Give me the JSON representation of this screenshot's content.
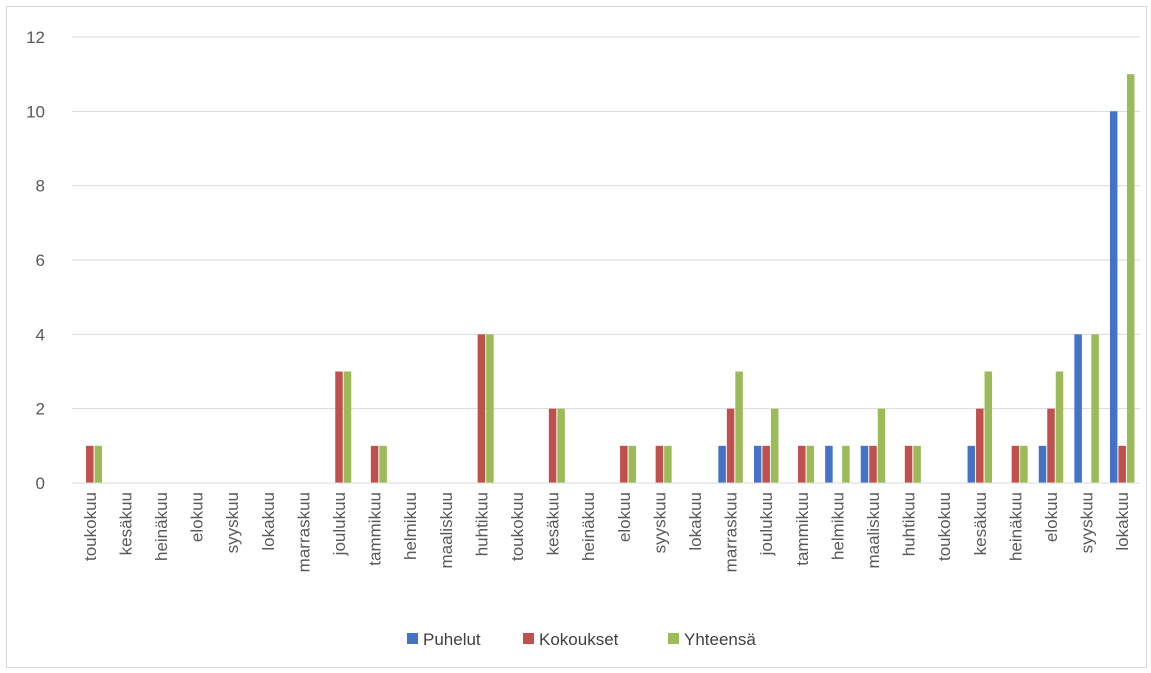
{
  "chart_data": {
    "type": "bar",
    "title": "",
    "xlabel": "",
    "ylabel": "",
    "ylim": [
      0,
      12
    ],
    "yticks": [
      0,
      2,
      4,
      6,
      8,
      10,
      12
    ],
    "grid": true,
    "legend_position": "bottom",
    "categories": [
      "toukokuu",
      "kesäkuu",
      "heinäkuu",
      "elokuu",
      "syyskuu",
      "lokakuu",
      "marraskuu",
      "joulukuu",
      "tammikuu",
      "helmikuu",
      "maaliskuu",
      "huhtikuu",
      "toukokuu",
      "kesäkuu",
      "heinäkuu",
      "elokuu",
      "syyskuu",
      "lokakuu",
      "marraskuu",
      "joulukuu",
      "tammikuu",
      "helmikuu",
      "maaliskuu",
      "huhtikuu",
      "toukokuu",
      "kesäkuu",
      "heinäkuu",
      "elokuu",
      "syyskuu",
      "lokakuu"
    ],
    "series": [
      {
        "name": "Puhelut",
        "color": "#4472C4",
        "values": [
          0,
          0,
          0,
          0,
          0,
          0,
          0,
          0,
          0,
          0,
          0,
          0,
          0,
          0,
          0,
          0,
          0,
          0,
          1,
          1,
          0,
          1,
          1,
          0,
          0,
          1,
          0,
          1,
          4,
          10
        ]
      },
      {
        "name": "Kokoukset",
        "color": "#C0504D",
        "values": [
          1,
          0,
          0,
          0,
          0,
          0,
          0,
          3,
          1,
          0,
          0,
          4,
          0,
          2,
          0,
          1,
          1,
          0,
          2,
          1,
          1,
          0,
          1,
          1,
          0,
          2,
          1,
          2,
          0,
          1
        ]
      },
      {
        "name": "Yhteensä",
        "color": "#9BBB59",
        "values": [
          1,
          0,
          0,
          0,
          0,
          0,
          0,
          3,
          1,
          0,
          0,
          4,
          0,
          2,
          0,
          1,
          1,
          0,
          3,
          2,
          1,
          1,
          2,
          1,
          0,
          3,
          1,
          3,
          4,
          11
        ]
      }
    ]
  }
}
